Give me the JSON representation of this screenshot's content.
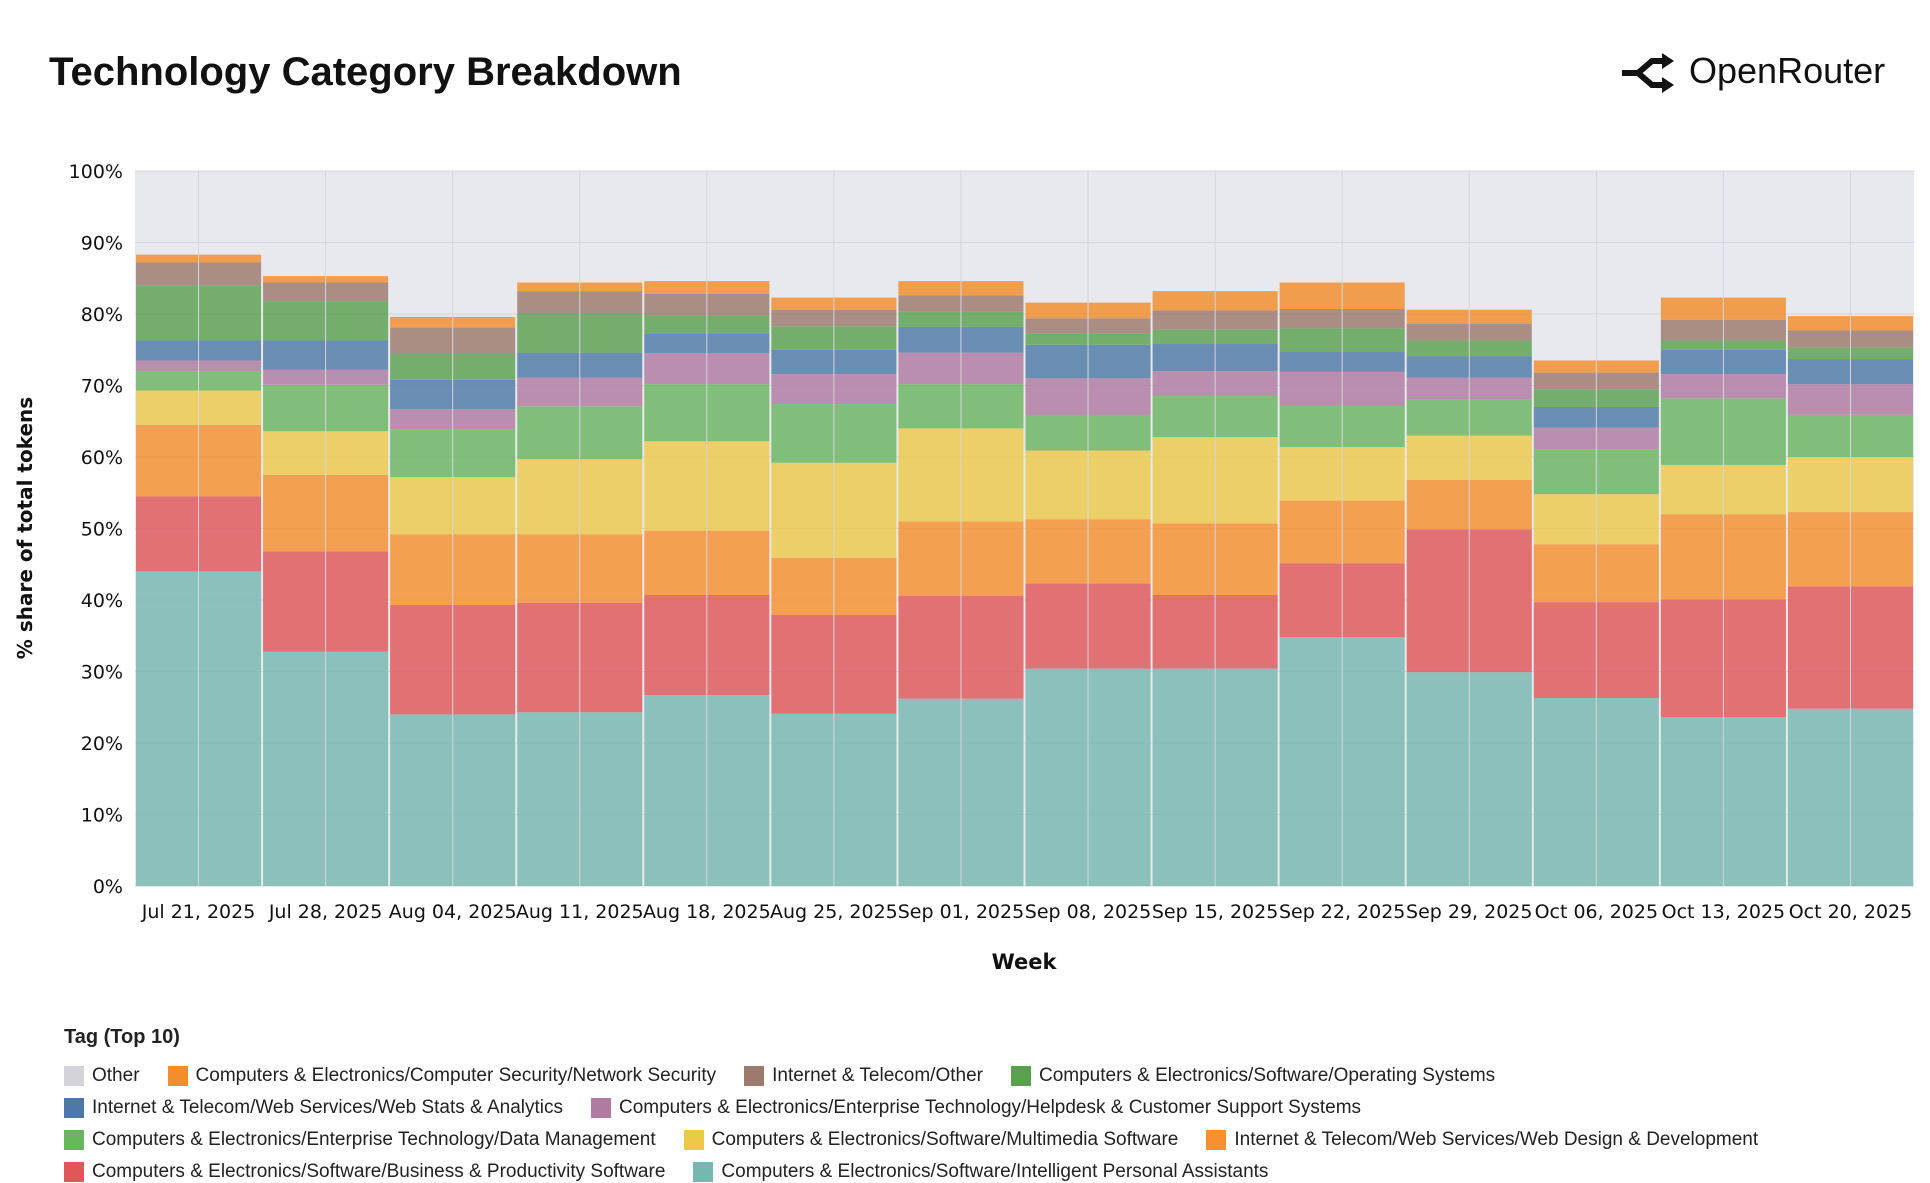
{
  "brand": "OpenRouter",
  "chart_data": {
    "type": "stacked_bar",
    "title": "Technology Category Breakdown",
    "x_label": "Week",
    "y_label": "% share of total tokens",
    "legend_title": "Tag (Top 10)",
    "grid": true,
    "ylim": [
      0,
      100
    ],
    "yticks": [
      {
        "value": 0,
        "label": "0%"
      },
      {
        "value": 10,
        "label": "10%"
      },
      {
        "value": 20,
        "label": "20%"
      },
      {
        "value": 30,
        "label": "30%"
      },
      {
        "value": 40,
        "label": "40%"
      },
      {
        "value": 50,
        "label": "50%"
      },
      {
        "value": 60,
        "label": "60%"
      },
      {
        "value": 70,
        "label": "70%"
      },
      {
        "value": 80,
        "label": "80%"
      },
      {
        "value": 90,
        "label": "90%"
      },
      {
        "value": 100,
        "label": "100%"
      }
    ],
    "categories": [
      "Jul 21, 2025",
      "Jul 28, 2025",
      "Aug 04, 2025",
      "Aug 11, 2025",
      "Aug 18, 2025",
      "Aug 25, 2025",
      "Sep 01, 2025",
      "Sep 08, 2025",
      "Sep 15, 2025",
      "Sep 22, 2025",
      "Sep 29, 2025",
      "Oct 06, 2025",
      "Oct 13, 2025",
      "Oct 20, 2025"
    ],
    "series": [
      {
        "name": "Other",
        "color": "#d3d3d9",
        "values": [
          0,
          0,
          0,
          0,
          0,
          0,
          0,
          0,
          0,
          0,
          0,
          0,
          0,
          0
        ]
      },
      {
        "name": "Computers & Electronics/Computer Security/Network Security",
        "color": "#f28e2b",
        "values": [
          1.1,
          0.9,
          1.5,
          1.2,
          1.8,
          1.7,
          2,
          2.2,
          2.7,
          3.7,
          2,
          1.7,
          3.1,
          2
        ]
      },
      {
        "name": "Internet & Telecom/Other",
        "color": "#9c7a6e",
        "values": [
          3.2,
          2.6,
          3.7,
          3.2,
          3,
          2.3,
          2.2,
          2.1,
          2.7,
          2.7,
          2.3,
          2.4,
          2.9,
          2.4
        ]
      },
      {
        "name": "Computers & Electronics/Software/Operating Systems",
        "color": "#59a14f",
        "values": [
          7.7,
          5.5,
          3.6,
          5.4,
          2.6,
          3.3,
          2.2,
          1.6,
          2,
          3.2,
          2.2,
          2.4,
          1.3,
          1.6
        ]
      },
      {
        "name": "Internet & Telecom/Web Services/Web Stats & Analytics",
        "color": "#4e79a7",
        "values": [
          2.8,
          4.1,
          4.1,
          3.5,
          2.7,
          3.4,
          3.6,
          4.7,
          3.8,
          2.9,
          3,
          2.9,
          3.4,
          3.5
        ]
      },
      {
        "name": "Computers & Electronics/Enterprise Technology/Helpdesk & Customer Support Systems",
        "color": "#b07aa1",
        "values": [
          1.5,
          2.1,
          2.8,
          4,
          4.3,
          4.2,
          4.4,
          5.2,
          3.4,
          4.7,
          3,
          3,
          3.4,
          4.3
        ]
      },
      {
        "name": "Computers & Electronics/Enterprise Technology/Data Management",
        "color": "#6ab55f",
        "values": [
          2.7,
          6.5,
          6.7,
          7.4,
          8,
          8.2,
          6.2,
          4.9,
          5.8,
          5.8,
          5.1,
          6.3,
          9.3,
          5.9
        ]
      },
      {
        "name": "Computers & Electronics/Software/Multimedia Software",
        "color": "#edc948",
        "values": [
          4.8,
          6.1,
          8,
          10.5,
          12.5,
          13.3,
          13,
          9.6,
          12.1,
          7.5,
          6.2,
          7,
          6.9,
          7.7
        ]
      },
      {
        "name": "Internet & Telecom/Web Services/Web Design & Development",
        "color": "#f7902f",
        "values": [
          10,
          10.7,
          9.9,
          9.6,
          9,
          8,
          10.4,
          9,
          10,
          8.8,
          6.9,
          8.1,
          11.9,
          10.4
        ]
      },
      {
        "name": "Computers & Electronics/Software/Business & Productivity Software",
        "color": "#e15759",
        "values": [
          10.5,
          14,
          15.3,
          15.3,
          14,
          13.8,
          14.4,
          11.9,
          10.3,
          10.3,
          20,
          13.4,
          16.5,
          17.1
        ]
      },
      {
        "name": "Computers & Electronics/Software/Intelligent Personal Assistants",
        "color": "#76b7b2",
        "values": [
          44,
          32.8,
          24,
          24.3,
          26.7,
          24.1,
          26.2,
          30.4,
          30.4,
          34.8,
          29.9,
          26.3,
          23.6,
          24.8
        ]
      }
    ]
  }
}
